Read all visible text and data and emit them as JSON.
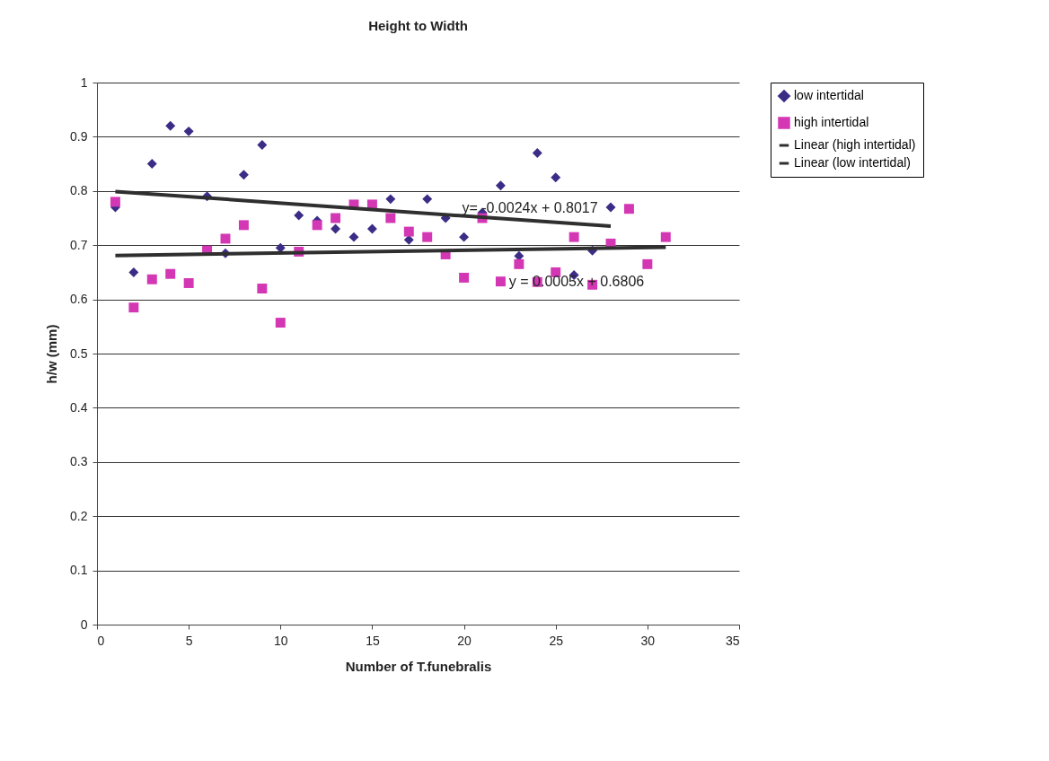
{
  "chart_data": {
    "type": "scatter",
    "title": "Height to Width",
    "xlabel": "Number of T.funebralis",
    "ylabel": "h/w (mm)",
    "xlim": [
      0,
      35
    ],
    "xticks": [
      0,
      5,
      10,
      15,
      20,
      25,
      30,
      35
    ],
    "ylim": [
      0,
      1
    ],
    "yticks": [
      0,
      0.1,
      0.2,
      0.3,
      0.4,
      0.5,
      0.6,
      0.7,
      0.8,
      0.9,
      1
    ],
    "grid": "y",
    "legend": "right",
    "series": [
      {
        "name": "low intertidal",
        "type": "scatter",
        "marker": "diamond",
        "color": "#3b2d86",
        "x": [
          1,
          2,
          3,
          4,
          5,
          6,
          7,
          8,
          9,
          10,
          11,
          12,
          13,
          14,
          15,
          16,
          17,
          18,
          19,
          20,
          21,
          22,
          23,
          24,
          25,
          26,
          27,
          28
        ],
        "values": [
          0.77,
          0.65,
          0.85,
          0.92,
          0.91,
          0.79,
          0.685,
          0.83,
          0.885,
          0.695,
          0.755,
          0.745,
          0.73,
          0.715,
          0.73,
          0.785,
          0.71,
          0.785,
          0.75,
          0.715,
          0.76,
          0.81,
          0.68,
          0.87,
          0.825,
          0.645,
          0.69,
          0.77
        ]
      },
      {
        "name": "high intertidal",
        "type": "scatter",
        "marker": "square",
        "color": "#d437b4",
        "x": [
          1,
          2,
          3,
          4,
          5,
          6,
          7,
          8,
          9,
          10,
          11,
          12,
          13,
          14,
          15,
          16,
          17,
          18,
          19,
          20,
          21,
          22,
          23,
          24,
          25,
          26,
          27,
          28,
          29,
          30,
          31
        ],
        "values": [
          0.78,
          0.585,
          0.637,
          0.647,
          0.63,
          0.69,
          0.712,
          0.737,
          0.62,
          0.557,
          0.688,
          0.737,
          0.75,
          0.775,
          0.775,
          0.75,
          0.725,
          0.715,
          0.683,
          0.64,
          0.75,
          0.633,
          0.665,
          0.632,
          0.65,
          0.715,
          0.627,
          0.703,
          0.767,
          0.665,
          0.715
        ]
      },
      {
        "name": "Linear (high intertidal)",
        "type": "line",
        "color": "#2f2f2f",
        "x": [
          1,
          31
        ],
        "values": [
          0.681,
          0.696
        ]
      },
      {
        "name": "Linear (low intertidal)",
        "type": "line",
        "color": "#2f2f2f",
        "x": [
          1,
          28
        ],
        "values": [
          0.799,
          0.735
        ]
      }
    ],
    "annotations": [
      "y= -0.0024x + 0.8017",
      "y = 0.0005x + 0.6806"
    ]
  }
}
